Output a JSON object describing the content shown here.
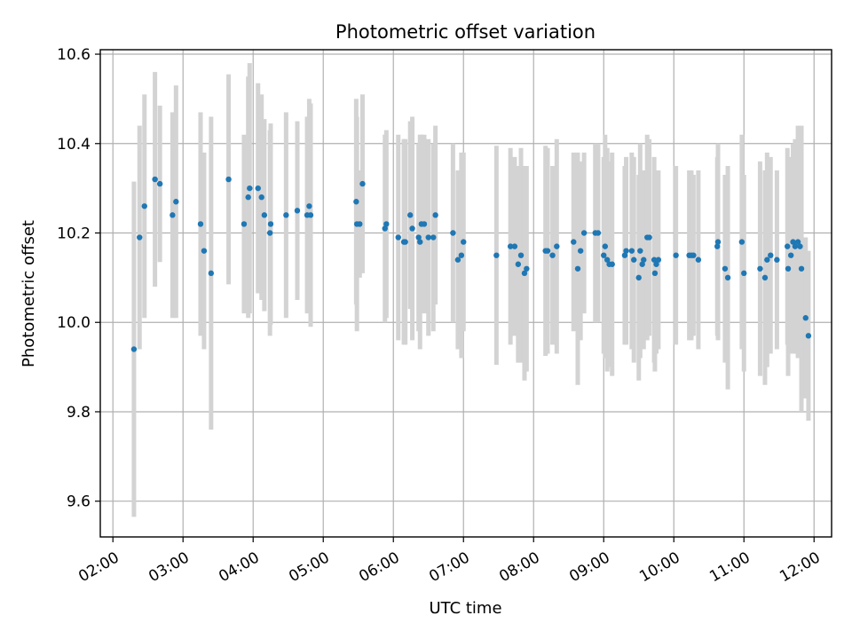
{
  "chart_data": {
    "type": "scatter",
    "title": "Photometric offset variation",
    "xlabel": "UTC time",
    "ylabel": "Photometric offset",
    "x_unit": "hours UTC",
    "xlim": [
      1.82,
      12.25
    ],
    "ylim": [
      9.52,
      10.61
    ],
    "x_ticks": [
      2,
      3,
      4,
      5,
      6,
      7,
      8,
      9,
      10,
      11,
      12
    ],
    "x_tick_labels": [
      "02:00",
      "03:00",
      "04:00",
      "05:00",
      "06:00",
      "07:00",
      "08:00",
      "09:00",
      "10:00",
      "11:00",
      "12:00"
    ],
    "y_ticks": [
      9.6,
      9.8,
      10.0,
      10.2,
      10.4,
      10.6
    ],
    "y_tick_labels": [
      "9.6",
      "9.8",
      "10.0",
      "10.2",
      "10.4",
      "10.6"
    ],
    "grid": true,
    "colors": {
      "marker": "#1f77b4",
      "errorbar": "#d3d3d3",
      "grid": "#b0b0b0"
    },
    "series": [
      {
        "x": [
          2.3,
          2.38,
          2.45,
          2.6,
          2.67,
          2.85,
          2.9,
          3.25,
          3.3,
          3.4,
          3.65,
          3.87,
          3.93,
          3.95,
          4.07,
          4.12,
          4.16,
          4.24,
          4.25,
          4.47,
          4.63,
          4.77,
          4.8,
          4.82,
          5.47,
          5.48,
          5.52,
          5.56,
          5.88,
          5.9,
          6.07,
          6.15,
          6.17,
          6.24,
          6.27,
          6.36,
          6.38,
          6.4,
          6.44,
          6.5,
          6.57,
          6.6,
          6.85,
          6.92,
          6.97,
          7.0,
          7.47,
          7.67,
          7.73,
          7.78,
          7.82,
          7.87,
          7.9,
          8.17,
          8.2,
          8.27,
          8.33,
          8.57,
          8.63,
          8.67,
          8.72,
          8.88,
          8.92,
          9.0,
          9.02,
          9.05,
          9.08,
          9.12,
          9.3,
          9.32,
          9.4,
          9.43,
          9.5,
          9.52,
          9.55,
          9.57,
          9.62,
          9.65,
          9.72,
          9.73,
          9.75,
          9.78,
          10.03,
          10.22,
          10.25,
          10.28,
          10.35,
          10.62,
          10.63,
          10.73,
          10.77,
          10.97,
          11.0,
          11.23,
          11.3,
          11.33,
          11.38,
          11.47,
          11.62,
          11.63,
          11.67,
          11.7,
          11.73,
          11.77,
          11.8,
          11.82,
          11.88,
          11.92
        ],
        "y": [
          9.94,
          10.19,
          10.26,
          10.32,
          10.31,
          10.24,
          10.27,
          10.22,
          10.16,
          10.11,
          10.32,
          10.22,
          10.28,
          10.3,
          10.3,
          10.28,
          10.24,
          10.2,
          10.22,
          10.24,
          10.25,
          10.24,
          10.26,
          10.24,
          10.27,
          10.22,
          10.22,
          10.31,
          10.21,
          10.22,
          10.19,
          10.18,
          10.18,
          10.24,
          10.21,
          10.19,
          10.18,
          10.22,
          10.22,
          10.19,
          10.19,
          10.24,
          10.2,
          10.14,
          10.15,
          10.18,
          10.15,
          10.17,
          10.17,
          10.13,
          10.15,
          10.11,
          10.12,
          10.16,
          10.16,
          10.15,
          10.17,
          10.18,
          10.12,
          10.16,
          10.2,
          10.2,
          10.2,
          10.15,
          10.17,
          10.14,
          10.13,
          10.13,
          10.15,
          10.16,
          10.16,
          10.14,
          10.1,
          10.16,
          10.13,
          10.14,
          10.19,
          10.19,
          10.14,
          10.11,
          10.13,
          10.14,
          10.15,
          10.15,
          10.15,
          10.15,
          10.14,
          10.17,
          10.18,
          10.12,
          10.1,
          10.18,
          10.11,
          10.12,
          10.1,
          10.14,
          10.15,
          10.14,
          10.17,
          10.12,
          10.15,
          10.18,
          10.17,
          10.18,
          10.17,
          10.12,
          10.01,
          9.97
        ],
        "yerr": [
          0.375,
          0.25,
          0.25,
          0.24,
          0.175,
          0.23,
          0.26,
          0.25,
          0.22,
          0.35,
          0.235,
          0.2,
          0.27,
          0.28,
          0.235,
          0.23,
          0.215,
          0.23,
          0.225,
          0.23,
          0.2,
          0.22,
          0.24,
          0.25,
          0.23,
          0.24,
          0.12,
          0.2,
          0.21,
          0.21,
          0.23,
          0.23,
          0.23,
          0.21,
          0.25,
          0.21,
          0.24,
          0.2,
          0.2,
          0.22,
          0.21,
          0.2,
          0.2,
          0.2,
          0.23,
          0.2,
          0.245,
          0.22,
          0.2,
          0.22,
          0.24,
          0.24,
          0.23,
          0.235,
          0.23,
          0.2,
          0.24,
          0.2,
          0.26,
          0.2,
          0.18,
          0.2,
          0.2,
          0.22,
          0.25,
          0.25,
          0.23,
          0.25,
          0.2,
          0.21,
          0.22,
          0.23,
          0.23,
          0.24,
          0.19,
          0.2,
          0.23,
          0.22,
          0.23,
          0.22,
          0.2,
          0.2,
          0.2,
          0.19,
          0.19,
          0.18,
          0.2,
          0.2,
          0.22,
          0.21,
          0.25,
          0.24,
          0.22,
          0.24,
          0.24,
          0.24,
          0.22,
          0.2,
          0.22,
          0.24,
          0.22,
          0.22,
          0.24,
          0.26,
          0.2,
          0.32,
          0.18,
          0.19
        ]
      }
    ]
  }
}
